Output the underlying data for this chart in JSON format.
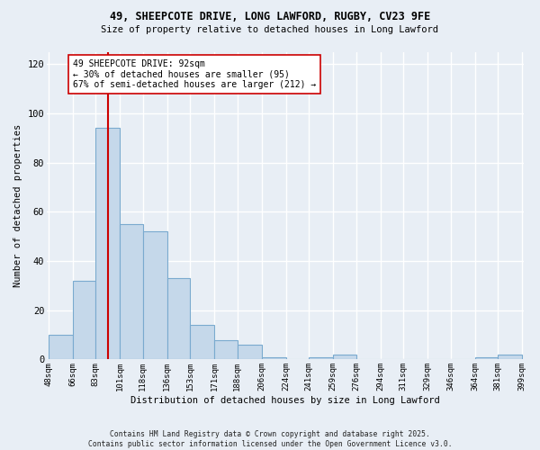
{
  "title1": "49, SHEEPCOTE DRIVE, LONG LAWFORD, RUGBY, CV23 9FE",
  "title2": "Size of property relative to detached houses in Long Lawford",
  "xlabel": "Distribution of detached houses by size in Long Lawford",
  "ylabel": "Number of detached properties",
  "bin_edges": [
    48,
    66,
    83,
    101,
    118,
    136,
    153,
    171,
    188,
    206,
    224,
    241,
    259,
    276,
    294,
    311,
    329,
    346,
    364,
    381,
    399
  ],
  "bar_heights": [
    10,
    32,
    94,
    55,
    52,
    33,
    14,
    8,
    6,
    1,
    0,
    1,
    2,
    0,
    0,
    0,
    0,
    0,
    1,
    2
  ],
  "xtick_labels": [
    "48sqm",
    "66sqm",
    "83sqm",
    "101sqm",
    "118sqm",
    "136sqm",
    "153sqm",
    "171sqm",
    "188sqm",
    "206sqm",
    "224sqm",
    "241sqm",
    "259sqm",
    "276sqm",
    "294sqm",
    "311sqm",
    "329sqm",
    "346sqm",
    "364sqm",
    "381sqm",
    "399sqm"
  ],
  "bar_fill_color": "#c5d8ea",
  "bar_edge_color": "#7aaacf",
  "vline_x": 92,
  "vline_color": "#cc0000",
  "annotation_text": "49 SHEEPCOTE DRIVE: 92sqm\n← 30% of detached houses are smaller (95)\n67% of semi-detached houses are larger (212) →",
  "annotation_box_facecolor": "#ffffff",
  "annotation_box_edgecolor": "#cc0000",
  "ylim": [
    0,
    125
  ],
  "yticks": [
    0,
    20,
    40,
    60,
    80,
    100,
    120
  ],
  "background_color": "#e8eef5",
  "grid_color": "#ffffff",
  "footer": "Contains HM Land Registry data © Crown copyright and database right 2025.\nContains public sector information licensed under the Open Government Licence v3.0."
}
